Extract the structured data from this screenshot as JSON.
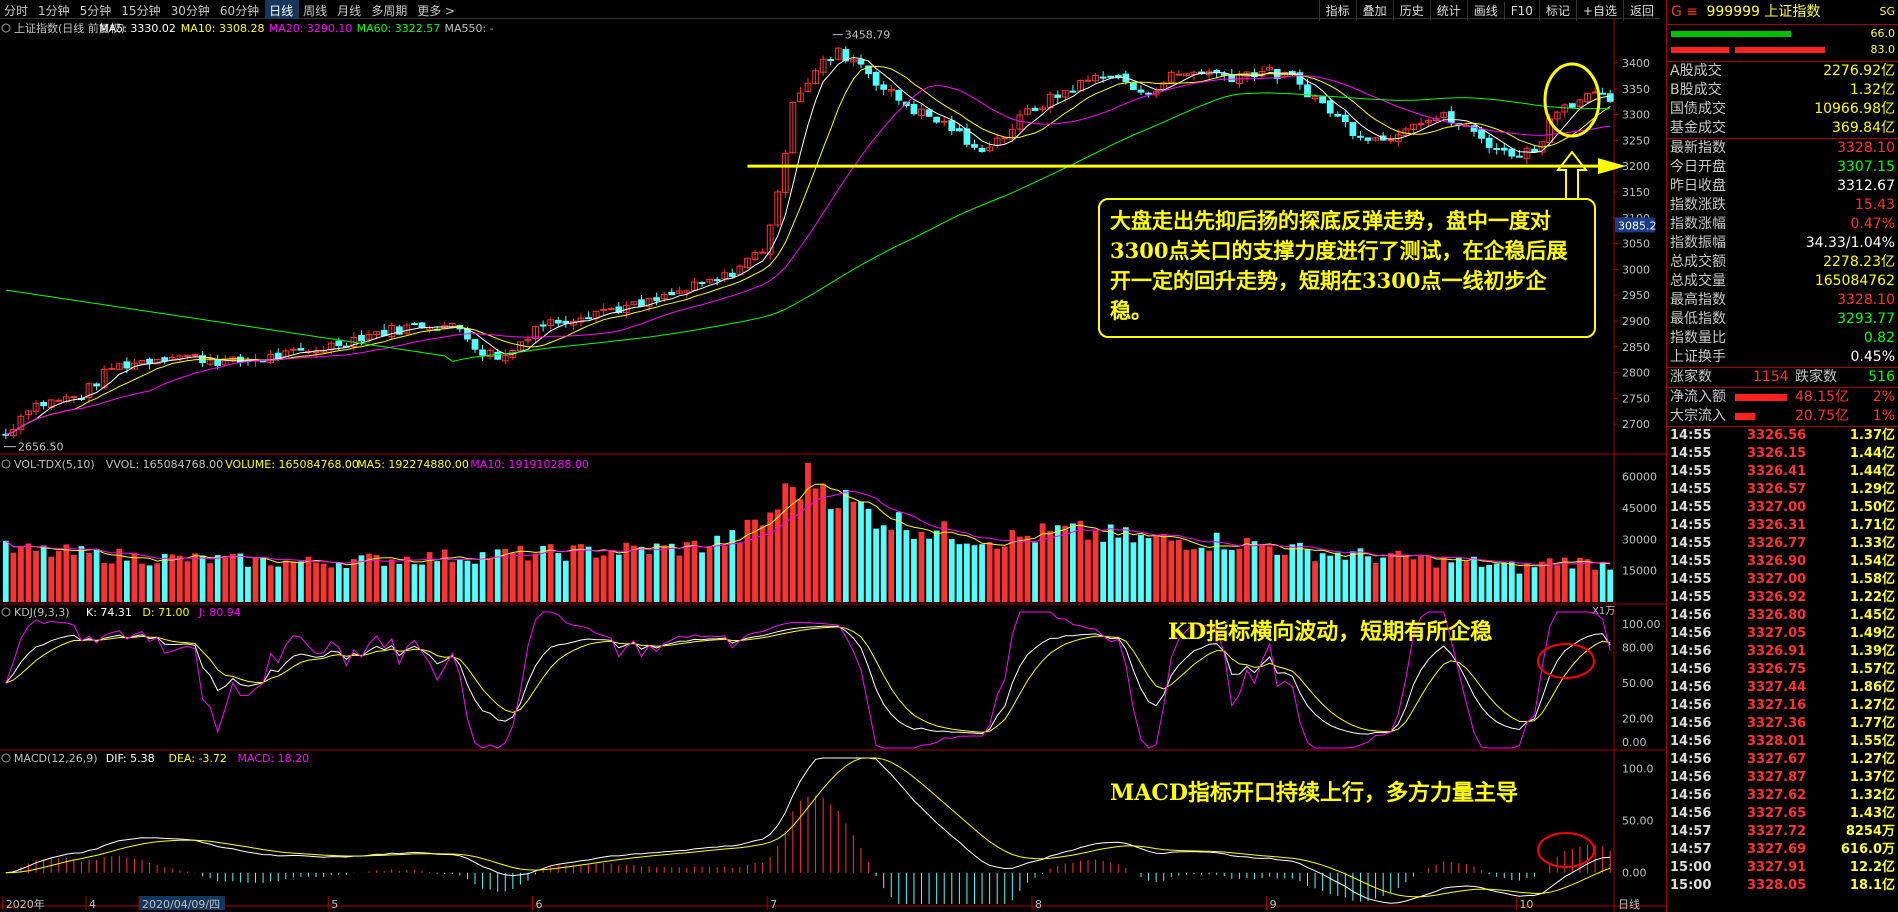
{
  "toolbar": {
    "periods": [
      "分时",
      "1分钟",
      "5分钟",
      "15分钟",
      "30分钟",
      "60分钟",
      "日线",
      "周线",
      "月线",
      "多周期",
      "更多 >"
    ],
    "active": "日线",
    "tools": [
      "指标",
      "叠加",
      "历史",
      "统计",
      "画线",
      "F10",
      "标记",
      "+自选",
      "返回"
    ]
  },
  "panels": {
    "main": {
      "title": "上证指数(日线 前复权)",
      "ma": [
        {
          "label": "MA5: 3330.02",
          "color": "#ffffff"
        },
        {
          "label": "MA10: 3308.28",
          "color": "#ffff00"
        },
        {
          "label": "MA20: 3290.10",
          "color": "#ff00ff"
        },
        {
          "label": "MA60: 3322.57",
          "color": "#00ff00"
        },
        {
          "label": "MA550: -",
          "color": "#c0c0c0"
        }
      ]
    },
    "vol": {
      "title": "VOL-TDX(5,10)",
      "parts": [
        {
          "label": "VVOL: 165084768.00",
          "color": "#c0c0c0"
        },
        {
          "label": "VOLUME: 165084768.00",
          "color": "#ffff00"
        },
        {
          "label": "MA5: 192274880.00",
          "color": "#ffff00"
        },
        {
          "label": "MA10: 191910288.00",
          "color": "#ff00ff"
        }
      ],
      "unit": "X1万"
    },
    "kdj": {
      "title": "KDJ(9,3,3)",
      "parts": [
        {
          "label": "K: 74.31",
          "color": "#ffffff"
        },
        {
          "label": "D: 71.00",
          "color": "#ffff00"
        },
        {
          "label": "J: 80.94",
          "color": "#ff00ff"
        }
      ]
    },
    "macd": {
      "title": "MACD(12,26,9)",
      "parts": [
        {
          "label": "DIF: 5.38",
          "color": "#ffffff"
        },
        {
          "label": "DEA: -3.72",
          "color": "#ffff00"
        },
        {
          "label": "MACD: 18.20",
          "color": "#ff00ff"
        }
      ]
    }
  },
  "axes": {
    "price": [
      "3400",
      "3350",
      "3300",
      "3250",
      "3200",
      "3150",
      "3100",
      "3050",
      "3000",
      "2950",
      "2900",
      "2850",
      "2800",
      "2750",
      "2700"
    ],
    "price_marker": "3085.2",
    "vol": [
      "60000",
      "45000",
      "30000",
      "15000"
    ],
    "kdj": [
      "100.00",
      "80.00",
      "50.00",
      "20.00",
      "0.00"
    ],
    "macd": [
      "100.0",
      "50.00",
      "0.00"
    ],
    "dates": [
      {
        "label": "2020年",
        "i": 0
      },
      {
        "label": "4",
        "i": 11
      },
      {
        "label": "2020/04/09/四",
        "i": 18,
        "hl": true
      },
      {
        "label": "5",
        "i": 43
      },
      {
        "label": "6",
        "i": 70
      },
      {
        "label": "7",
        "i": 101
      },
      {
        "label": "8",
        "i": 136
      },
      {
        "label": "9",
        "i": 167
      },
      {
        "label": "10",
        "i": 200
      }
    ],
    "period_label": "日线"
  },
  "labels": {
    "high": "3458.79",
    "low": "2656.50"
  },
  "annotations": {
    "box": "大盘走出先抑后扬的探底反弹走势，盘中一度对3300点关口的支撑力度进行了测试，在企稳后展开一定的回升走势，短期在3300点一线初步企稳。",
    "kd": "KD指标横向波动，短期有所企稳",
    "macd": "MACD指标开口持续上行，多方力量主导"
  },
  "colors": {
    "up": "#ff3232",
    "down": "#54ffff",
    "ma5": "#ffffff",
    "ma10": "#ffff00",
    "ma20": "#ff00ff",
    "ma60": "#00ff00",
    "ann": "#ffff00",
    "circle": "#ff0000"
  },
  "sidebar": {
    "code": "999999",
    "name": "上证指数",
    "tag": "SG",
    "bar_pcts": [
      "66.0",
      "83.0"
    ],
    "rows1": [
      {
        "k": "A股成交",
        "v": "2276.92亿",
        "c": "#ffff00"
      },
      {
        "k": "B股成交",
        "v": "1.32亿",
        "c": "#ffff00"
      },
      {
        "k": "国债成交",
        "v": "10966.98亿",
        "c": "#ffff00"
      },
      {
        "k": "基金成交",
        "v": "369.84亿",
        "c": "#ffff00"
      }
    ],
    "rows2": [
      {
        "k": "最新指数",
        "v": "3328.10",
        "c": "#ff3232"
      },
      {
        "k": "今日开盘",
        "v": "3307.15",
        "c": "#00ff00"
      },
      {
        "k": "昨日收盘",
        "v": "3312.67",
        "c": "#ffffff"
      },
      {
        "k": "指数涨跌",
        "v": "15.43",
        "c": "#ff3232"
      },
      {
        "k": "指数涨幅",
        "v": "0.47%",
        "c": "#ff3232"
      },
      {
        "k": "指数振幅",
        "v": "34.33/1.04%",
        "c": "#ffffff"
      },
      {
        "k": "总成交额",
        "v": "2278.23亿",
        "c": "#ffff00"
      },
      {
        "k": "总成交量",
        "v": "165084762",
        "c": "#ffff00"
      },
      {
        "k": "最高指数",
        "v": "3328.10",
        "c": "#ff3232"
      },
      {
        "k": "最低指数",
        "v": "3293.77",
        "c": "#00ff00"
      },
      {
        "k": "指数量比",
        "v": "0.82",
        "c": "#00ff00"
      },
      {
        "k": "上证换手",
        "v": "0.45%",
        "c": "#ffffff"
      }
    ],
    "updown": {
      "k1": "涨家数",
      "v1": "1154",
      "k2": "跌家数",
      "v2": "516"
    },
    "flow": [
      {
        "k": "净流入额",
        "v": "48.15亿",
        "p": "2%"
      },
      {
        "k": "大宗流入",
        "v": "20.75亿",
        "p": "1%"
      }
    ],
    "ticks": [
      [
        "14:55",
        "3326.56",
        "1.37亿"
      ],
      [
        "14:55",
        "3326.15",
        "1.44亿"
      ],
      [
        "14:55",
        "3326.41",
        "1.44亿"
      ],
      [
        "14:55",
        "3326.57",
        "1.29亿"
      ],
      [
        "14:55",
        "3327.00",
        "1.50亿"
      ],
      [
        "14:55",
        "3326.31",
        "1.71亿"
      ],
      [
        "14:55",
        "3326.77",
        "1.33亿"
      ],
      [
        "14:55",
        "3326.90",
        "1.54亿"
      ],
      [
        "14:55",
        "3327.00",
        "1.58亿"
      ],
      [
        "14:55",
        "3326.92",
        "1.22亿"
      ],
      [
        "14:56",
        "3326.80",
        "1.45亿"
      ],
      [
        "14:56",
        "3327.05",
        "1.49亿"
      ],
      [
        "14:56",
        "3326.91",
        "1.39亿"
      ],
      [
        "14:56",
        "3326.75",
        "1.57亿"
      ],
      [
        "14:56",
        "3327.44",
        "1.86亿"
      ],
      [
        "14:56",
        "3327.16",
        "1.27亿"
      ],
      [
        "14:56",
        "3327.36",
        "1.77亿"
      ],
      [
        "14:56",
        "3328.01",
        "1.55亿"
      ],
      [
        "14:56",
        "3327.67",
        "1.27亿"
      ],
      [
        "14:56",
        "3327.87",
        "1.37亿"
      ],
      [
        "14:56",
        "3327.62",
        "1.32亿"
      ],
      [
        "14:56",
        "3327.65",
        "1.43亿"
      ],
      [
        "14:57",
        "3327.72",
        "8254万"
      ],
      [
        "14:57",
        "3327.69",
        "616.0万"
      ],
      [
        "15:00",
        "3327.91",
        "12.2亿"
      ],
      [
        "15:00",
        "3328.05",
        "18.1亿"
      ]
    ]
  },
  "chart_data": {
    "type": "candlestick",
    "scale": {
      "price_range": [
        2650,
        3460
      ],
      "vol_max": 67000,
      "kdj_range": [
        -5,
        110
      ],
      "macd_range": [
        -30,
        110
      ]
    },
    "anchors": [
      [
        0,
        2680
      ],
      [
        3,
        2735
      ],
      [
        10,
        2755
      ],
      [
        14,
        2810
      ],
      [
        22,
        2835
      ],
      [
        30,
        2820
      ],
      [
        40,
        2840
      ],
      [
        48,
        2875
      ],
      [
        56,
        2895
      ],
      [
        60,
        2885
      ],
      [
        63,
        2840
      ],
      [
        66,
        2830
      ],
      [
        70,
        2890
      ],
      [
        78,
        2920
      ],
      [
        84,
        2930
      ],
      [
        90,
        2960
      ],
      [
        95,
        2985
      ],
      [
        100,
        3040
      ],
      [
        102,
        3140
      ],
      [
        104,
        3330
      ],
      [
        108,
        3400
      ],
      [
        110,
        3420
      ],
      [
        113,
        3400
      ],
      [
        116,
        3350
      ],
      [
        120,
        3310
      ],
      [
        125,
        3275
      ],
      [
        128,
        3230
      ],
      [
        132,
        3260
      ],
      [
        135,
        3305
      ],
      [
        140,
        3345
      ],
      [
        145,
        3380
      ],
      [
        148,
        3365
      ],
      [
        150,
        3335
      ],
      [
        154,
        3375
      ],
      [
        158,
        3385
      ],
      [
        162,
        3375
      ],
      [
        166,
        3385
      ],
      [
        170,
        3370
      ],
      [
        174,
        3320
      ],
      [
        178,
        3270
      ],
      [
        182,
        3250
      ],
      [
        186,
        3290
      ],
      [
        190,
        3295
      ],
      [
        194,
        3265
      ],
      [
        198,
        3225
      ],
      [
        202,
        3230
      ],
      [
        205,
        3315
      ],
      [
        209,
        3335
      ],
      [
        212,
        3330
      ]
    ],
    "vol_anchors": [
      [
        0,
        25000
      ],
      [
        20,
        21000
      ],
      [
        40,
        19000
      ],
      [
        60,
        22000
      ],
      [
        90,
        26000
      ],
      [
        96,
        30000
      ],
      [
        100,
        38000
      ],
      [
        104,
        55000
      ],
      [
        107,
        60000
      ],
      [
        111,
        48000
      ],
      [
        116,
        40000
      ],
      [
        124,
        33000
      ],
      [
        132,
        30000
      ],
      [
        140,
        34000
      ],
      [
        150,
        30000
      ],
      [
        162,
        29000
      ],
      [
        172,
        24000
      ],
      [
        184,
        21000
      ],
      [
        194,
        19000
      ],
      [
        200,
        16000
      ],
      [
        205,
        20000
      ],
      [
        212,
        18000
      ]
    ],
    "bar_count": 213,
    "highlights": [
      {
        "type": "hline",
        "value": 3200,
        "color": "#ffff00"
      }
    ]
  }
}
